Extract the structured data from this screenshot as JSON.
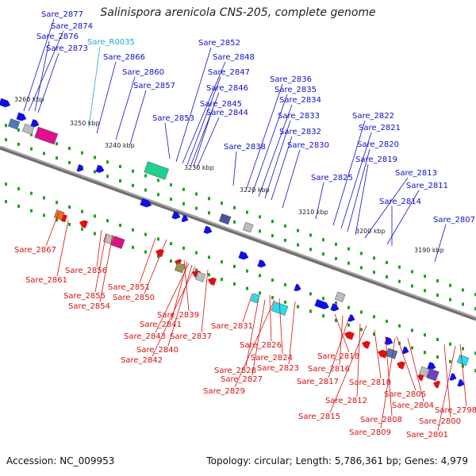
{
  "header": {
    "title": "Salinispora arenicola CNS-205, complete genome"
  },
  "footer": {
    "accession": "Accession: NC_009953",
    "summary": "Topology: circular; Length: 5,786,361 bp; Genes: 4,979"
  },
  "colors": {
    "forward": "#1010e0",
    "reverse": "#e01010",
    "rna": "#20b0d0",
    "backbone": "#808080",
    "tick": "#20a020"
  },
  "coordinate_labels": [
    "3260 kbp",
    "3250 kbp",
    "3240 kbp",
    "3230 kbp",
    "3220 kbp",
    "3210 kbp",
    "3200 kbp",
    "3190 kbp"
  ],
  "top_labels": [
    "Sare_2877",
    "Sare_2874",
    "Sare_2876",
    "Sare_2873",
    "Sare_R0035",
    "Sare_2866",
    "Sare_2860",
    "Sare_2857",
    "Sare_2852",
    "Sare_2848",
    "Sare_2847",
    "Sare_2846",
    "Sare_2845",
    "Sare_2844",
    "Sare_2853",
    "Sare_2838",
    "Sare_2836",
    "Sare_2835",
    "Sare_2834",
    "Sare_2833",
    "Sare_2832",
    "Sare_2830",
    "Sare_2825",
    "Sare_2822",
    "Sare_2821",
    "Sare_2820",
    "Sare_2819",
    "Sare_2813",
    "Sare_2811",
    "Sare_2814",
    "Sare_2807"
  ],
  "bottom_labels": [
    "Sare_2867",
    "Sare_2861",
    "Sare_2856",
    "Sare_2855",
    "Sare_2854",
    "Sare_2851",
    "Sare_2850",
    "Sare_2839",
    "Sare_2841",
    "Sare_2843",
    "Sare_2840",
    "Sare_2842",
    "Sare_2837",
    "Sare_2831",
    "Sare_2826",
    "Sare_2824",
    "Sare_2823",
    "Sare_2828",
    "Sare_2827",
    "Sare_2829",
    "Sare_2818",
    "Sare_2816",
    "Sare_2817",
    "Sare_2812",
    "Sare_2815",
    "Sare_2810",
    "Sare_2806",
    "Sare_2804",
    "Sare_2808",
    "Sare_2809",
    "Sare_2800",
    "Sare_2798",
    "Sare_2801"
  ]
}
